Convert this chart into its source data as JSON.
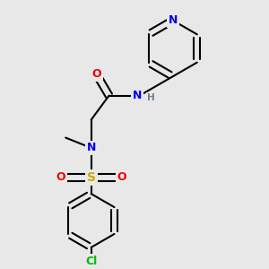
{
  "bg_color": "#e8e8e8",
  "atom_colors": {
    "C": "#000000",
    "N": "#0000ee",
    "O": "#ee0000",
    "S": "#ccaa00",
    "Cl": "#00bb00",
    "H": "#708090"
  },
  "bond_color": "#000000",
  "bond_width": 1.5,
  "figsize": [
    3.0,
    3.0
  ],
  "dpi": 100
}
